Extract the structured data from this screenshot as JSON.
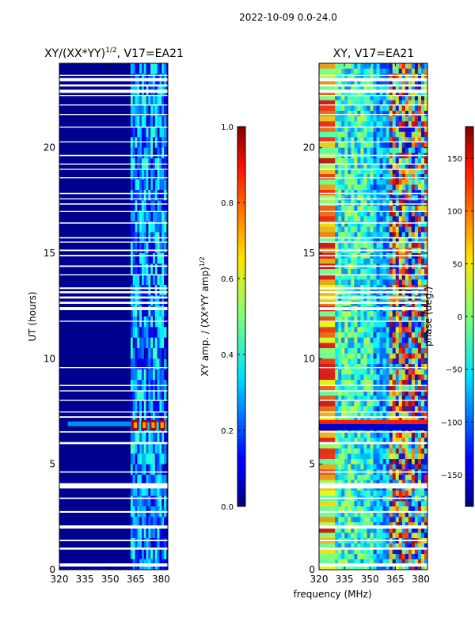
{
  "figure": {
    "suptitle": "2022-10-09 0.0-24.0",
    "xlabel_shared": "frequency (MHz)"
  },
  "chart_data": [
    {
      "type": "heatmap",
      "title_base": "XY/(XX*YY)",
      "title_exponent": "1/2",
      "title_suffix": ", V17=EA21",
      "xlabel": "",
      "ylabel": "UT (hours)",
      "xlim": [
        320,
        384
      ],
      "ylim": [
        0,
        24
      ],
      "xticks": [
        320,
        335,
        350,
        365,
        380
      ],
      "yticks": [
        0,
        5,
        10,
        15,
        20
      ],
      "colorbar": {
        "label_base": "XY amp. / (XX*YY amp)",
        "label_exponent": "1/2",
        "range": [
          0.0,
          1.0
        ],
        "ticks": [
          "0.0",
          "0.2",
          "0.4",
          "0.6",
          "0.8",
          "1.0"
        ],
        "tick_values": [
          0.0,
          0.2,
          0.4,
          0.6,
          0.8,
          1.0
        ],
        "colormap": "jet"
      },
      "features": {
        "background_value": 0.02,
        "noisy_band_mhz": [
          362,
          383
        ],
        "noisy_band_value_range": [
          0.05,
          0.45
        ],
        "rfi_event_ut": [
          6.6,
          7.1
        ],
        "rfi_event_value": 0.95
      }
    },
    {
      "type": "heatmap",
      "title": "XY, V17=EA21",
      "xlabel": "",
      "ylabel": "",
      "xlim": [
        320,
        384
      ],
      "ylim": [
        0,
        24
      ],
      "xticks": [
        320,
        335,
        350,
        365,
        380
      ],
      "yticks": [
        0,
        5,
        10,
        15,
        20
      ],
      "colorbar": {
        "label": "phase (deg.)",
        "range": [
          -180,
          180
        ],
        "ticks": [
          "−150",
          "−100",
          "−50",
          "0",
          "50",
          "100",
          "150"
        ],
        "tick_values": [
          -150,
          -100,
          -50,
          0,
          50,
          100,
          150
        ],
        "colormap": "jet"
      },
      "features": {
        "phase_range_deg": [
          -180,
          180
        ],
        "rfi_event_ut": [
          6.6,
          7.1
        ]
      }
    }
  ],
  "flagged_gaps_ut": [
    [
      0.15,
      0.3
    ],
    [
      0.95,
      1.05
    ],
    [
      1.35,
      1.42
    ],
    [
      1.95,
      2.1
    ],
    [
      2.7,
      2.78
    ],
    [
      3.35,
      3.42
    ],
    [
      3.85,
      4.1
    ],
    [
      4.6,
      4.66
    ],
    [
      5.95,
      6.05
    ],
    [
      6.5,
      6.56
    ],
    [
      7.2,
      7.27
    ],
    [
      7.45,
      7.5
    ],
    [
      8.0,
      8.05
    ],
    [
      8.45,
      8.5
    ],
    [
      8.7,
      8.76
    ],
    [
      9.55,
      9.6
    ],
    [
      11.75,
      11.8
    ],
    [
      12.3,
      12.45
    ],
    [
      12.6,
      12.7
    ],
    [
      12.85,
      12.95
    ],
    [
      13.1,
      13.2
    ],
    [
      13.3,
      13.38
    ],
    [
      13.95,
      14.0
    ],
    [
      14.35,
      14.42
    ],
    [
      14.85,
      14.92
    ],
    [
      15.1,
      15.17
    ],
    [
      15.5,
      15.55
    ],
    [
      15.7,
      15.76
    ],
    [
      16.4,
      16.46
    ],
    [
      16.95,
      17.0
    ],
    [
      17.3,
      17.36
    ],
    [
      17.55,
      17.6
    ],
    [
      17.8,
      17.86
    ],
    [
      18.55,
      18.6
    ],
    [
      18.95,
      19.0
    ],
    [
      19.2,
      19.25
    ],
    [
      19.6,
      19.66
    ],
    [
      20.25,
      20.3
    ],
    [
      20.95,
      21.0
    ],
    [
      21.55,
      21.6
    ],
    [
      22.0,
      22.05
    ],
    [
      22.45,
      22.5
    ],
    [
      22.6,
      22.75
    ],
    [
      22.9,
      23.0
    ],
    [
      23.15,
      23.3
    ],
    [
      23.4,
      23.45
    ]
  ]
}
